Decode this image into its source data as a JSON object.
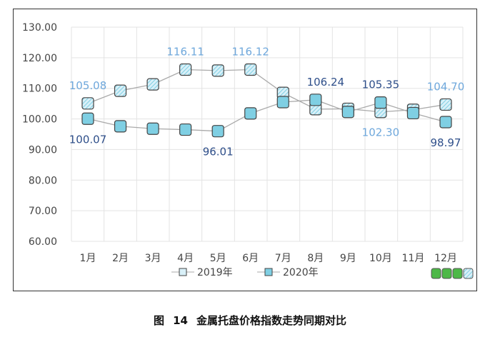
{
  "chart_data": {
    "type": "line",
    "categories": [
      "1月",
      "2月",
      "3月",
      "4月",
      "5月",
      "6月",
      "7月",
      "8月",
      "9月",
      "10月",
      "11月",
      "12月"
    ],
    "series": [
      {
        "name": "2019年",
        "values": [
          105.08,
          109.2,
          111.3,
          116.11,
          115.8,
          116.12,
          108.5,
          103.2,
          103.3,
          102.3,
          103.0,
          104.7
        ],
        "color": "#a9dcef",
        "labels": {
          "0": "105.08",
          "3": "116.11",
          "5": "116.12",
          "9": "102.30",
          "11": "104.70"
        },
        "label_color": "#6fa8dc"
      },
      {
        "name": "2020年",
        "values": [
          100.07,
          97.6,
          96.8,
          96.5,
          96.01,
          101.8,
          105.5,
          106.24,
          102.3,
          105.35,
          101.9,
          98.97
        ],
        "color": "#7fcfe3",
        "labels": {
          "0": "100.07",
          "4": "96.01",
          "7": "106.24",
          "9": "105.35",
          "11": "98.97"
        },
        "label_color": "#2f4f8a"
      }
    ],
    "yticks": [
      "130.00",
      "120.00",
      "110.00",
      "100.00",
      "90.00",
      "80.00",
      "70.00",
      "60.00"
    ],
    "ylim": [
      60,
      130
    ],
    "grid": true,
    "legend": "bottom"
  },
  "caption": {
    "fig": "图",
    "num": "14",
    "title": "金属托盘价格指数走势同期对比"
  }
}
